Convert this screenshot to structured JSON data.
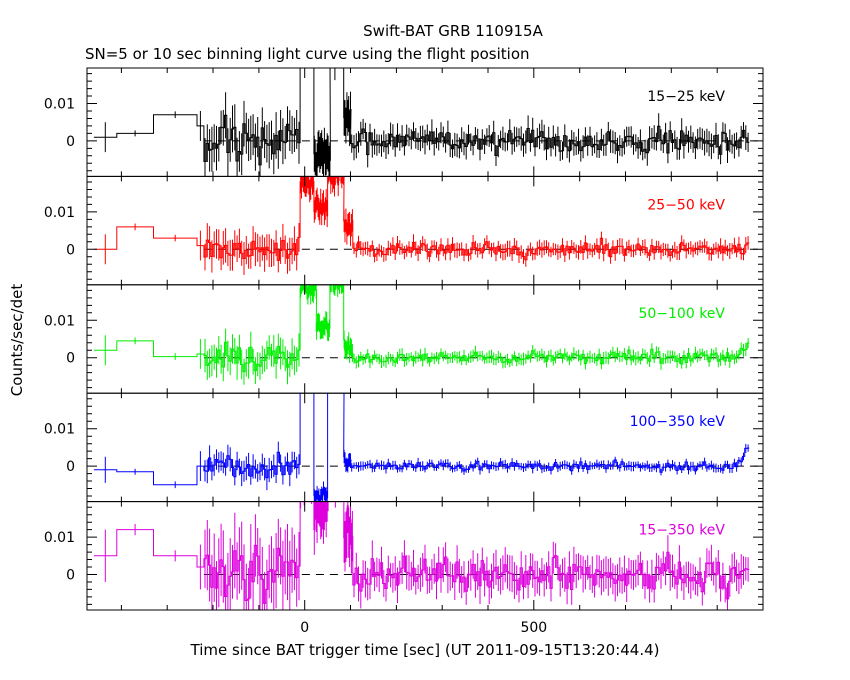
{
  "figure": {
    "title": "Swift-BAT GRB 110915A",
    "subtitle": "SN=5 or 10 sec binning light curve using the flight position",
    "ylabel": "Counts/sec/det",
    "xlabel": "Time since BAT trigger time [sec] (UT 2011-09-15T13:20:44.4)"
  },
  "chart_data": {
    "type": "line",
    "step": true,
    "error_bars": true,
    "xlim": [
      -475,
      1000
    ],
    "ylim": [
      -0.0095,
      0.0195
    ],
    "xticks_major": [
      0,
      500
    ],
    "xtick_labels": [
      "0",
      "500"
    ],
    "yticks_labeled": [
      0,
      0.01
    ],
    "ytick_labels": [
      "0",
      "0.01"
    ],
    "zero_reference_dashed": true,
    "panels": [
      {
        "band_label": "15−25 keV",
        "color": "#000000",
        "wide_bins": [
          {
            "x0": -460,
            "x1": -410,
            "y": 0.001,
            "err": 0.004
          },
          {
            "x0": -410,
            "x1": -330,
            "y": 0.002,
            "err": 0.0008
          },
          {
            "x0": -330,
            "x1": -235,
            "y": 0.007,
            "err": 0.0009
          },
          {
            "x0": -235,
            "x1": -220,
            "y": 0.004,
            "err": 0.004
          }
        ],
        "amp": 0.0032,
        "pre_amp": 0.0055,
        "peaks": [
          {
            "x0": -10,
            "x1": 20,
            "y": 0.03
          },
          {
            "x0": 20,
            "x1": 55,
            "y": -0.004
          },
          {
            "x0": 55,
            "x1": 85,
            "y": 0.028
          },
          {
            "x0": 85,
            "x1": 100,
            "y": 0.006
          }
        ],
        "end_tail": 0
      },
      {
        "band_label": "25−50 keV",
        "color": "#ff0000",
        "wide_bins": [
          {
            "x0": -460,
            "x1": -410,
            "y": 0.0,
            "err": 0.004
          },
          {
            "x0": -410,
            "x1": -330,
            "y": 0.006,
            "err": 0.0009
          },
          {
            "x0": -330,
            "x1": -235,
            "y": 0.003,
            "err": 0.0009
          },
          {
            "x0": -235,
            "x1": -220,
            "y": 0.001,
            "err": 0.004
          }
        ],
        "amp": 0.002,
        "pre_amp": 0.004,
        "peaks": [
          {
            "x0": -10,
            "x1": 20,
            "y": 0.018
          },
          {
            "x0": 20,
            "x1": 50,
            "y": 0.011
          },
          {
            "x0": 50,
            "x1": 85,
            "y": 0.02
          },
          {
            "x0": 85,
            "x1": 105,
            "y": 0.006
          }
        ],
        "end_tail": 0
      },
      {
        "band_label": "50−100 keV",
        "color": "#00ee00",
        "wide_bins": [
          {
            "x0": -460,
            "x1": -410,
            "y": 0.002,
            "err": 0.004
          },
          {
            "x0": -410,
            "x1": -330,
            "y": 0.0045,
            "err": 0.0009
          },
          {
            "x0": -330,
            "x1": -235,
            "y": 0.0003,
            "err": 0.0009
          },
          {
            "x0": -235,
            "x1": -220,
            "y": 0.001,
            "err": 0.004
          }
        ],
        "amp": 0.0016,
        "pre_amp": 0.0038,
        "peaks": [
          {
            "x0": -10,
            "x1": 25,
            "y": 0.019
          },
          {
            "x0": 25,
            "x1": 55,
            "y": 0.008
          },
          {
            "x0": 55,
            "x1": 85,
            "y": 0.02
          },
          {
            "x0": 85,
            "x1": 105,
            "y": 0.003
          }
        ],
        "end_tail": 0.004
      },
      {
        "band_label": "100−350 keV",
        "color": "#0000ff",
        "wide_bins": [
          {
            "x0": -460,
            "x1": -410,
            "y": -0.001,
            "err": 0.0035
          },
          {
            "x0": -410,
            "x1": -330,
            "y": -0.0015,
            "err": 0.0008
          },
          {
            "x0": -330,
            "x1": -235,
            "y": -0.005,
            "err": 0.0009
          },
          {
            "x0": -235,
            "x1": -220,
            "y": 0.0,
            "err": 0.004
          }
        ],
        "amp": 0.0012,
        "pre_amp": 0.0028,
        "peaks": [
          {
            "x0": -10,
            "x1": 20,
            "y": 0.025
          },
          {
            "x0": 20,
            "x1": 50,
            "y": -0.008
          },
          {
            "x0": 50,
            "x1": 85,
            "y": 0.025
          },
          {
            "x0": 85,
            "x1": 100,
            "y": 0.001
          }
        ],
        "end_tail": 0.006
      },
      {
        "band_label": "15−350 keV",
        "color": "#dd00dd",
        "wide_bins": [
          {
            "x0": -460,
            "x1": -410,
            "y": 0.005,
            "err": 0.007
          },
          {
            "x0": -410,
            "x1": -330,
            "y": 0.012,
            "err": 0.0015
          },
          {
            "x0": -330,
            "x1": -235,
            "y": 0.005,
            "err": 0.0015
          },
          {
            "x0": -235,
            "x1": -220,
            "y": 0.002,
            "err": 0.006
          }
        ],
        "amp": 0.0045,
        "pre_amp": 0.0085,
        "peaks": [
          {
            "x0": -10,
            "x1": 20,
            "y": 0.03
          },
          {
            "x0": 20,
            "x1": 50,
            "y": 0.018
          },
          {
            "x0": 50,
            "x1": 85,
            "y": 0.03
          },
          {
            "x0": 85,
            "x1": 105,
            "y": 0.01
          }
        ],
        "end_tail": 0
      }
    ]
  }
}
